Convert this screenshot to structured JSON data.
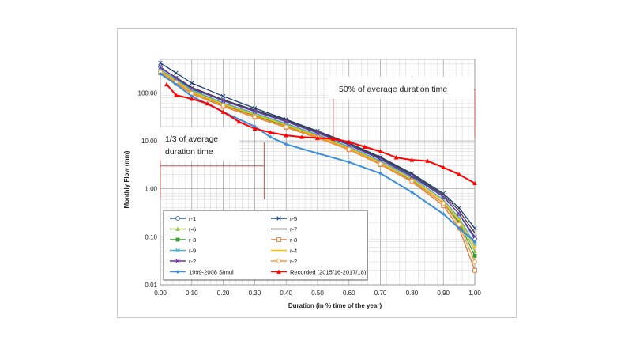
{
  "chart_data": {
    "type": "line",
    "title": "",
    "xlabel": "Duration (in % time of the year)",
    "ylabel": "Monthly Flow (mm)",
    "xlim": [
      0,
      1
    ],
    "ylim": [
      0.01,
      500
    ],
    "yscale": "log",
    "x_ticks": [
      "0.00",
      "0.10",
      "0.20",
      "0.30",
      "0.40",
      "0.50",
      "0.60",
      "0.70",
      "0.80",
      "0.90",
      "1.00"
    ],
    "y_ticks": [
      {
        "value": 100,
        "label": "100.00"
      },
      {
        "value": 10,
        "label": "10.00"
      },
      {
        "value": 1,
        "label": "1.00"
      },
      {
        "value": 0.1,
        "label": "0.10"
      },
      {
        "value": 0.01,
        "label": "0.01"
      }
    ],
    "grid": true,
    "annotations": [
      {
        "text": "50% of average duration time",
        "x_from": 0.55,
        "x_to": 1.0,
        "y": 100
      },
      {
        "text_lines": [
          "1/3 of average",
          "duration time"
        ],
        "x_from": 0.0,
        "x_to": 0.33,
        "y": 10
      }
    ],
    "series": [
      {
        "name": "r-1",
        "color": "#2e5f9e",
        "marker": "circle-open",
        "x": [
          0,
          0.05,
          0.1,
          0.2,
          0.3,
          0.4,
          0.5,
          0.6,
          0.7,
          0.8,
          0.9,
          0.95,
          1.0
        ],
        "y": [
          350,
          200,
          120,
          70,
          42,
          26,
          15,
          8.5,
          4.2,
          1.9,
          0.7,
          0.3,
          0.09
        ]
      },
      {
        "name": "r-5",
        "color": "#1f3f7a",
        "marker": "cross",
        "x": [
          0,
          0.05,
          0.1,
          0.2,
          0.3,
          0.4,
          0.5,
          0.6,
          0.7,
          0.8,
          0.9,
          0.95,
          1.0
        ],
        "y": [
          420,
          260,
          160,
          85,
          48,
          28,
          16,
          9,
          4.6,
          2.1,
          0.8,
          0.4,
          0.15
        ]
      },
      {
        "name": "r-6",
        "color": "#9bbb59",
        "marker": "triangle",
        "x": [
          0,
          0.05,
          0.1,
          0.2,
          0.3,
          0.4,
          0.5,
          0.6,
          0.7,
          0.8,
          0.9,
          0.95,
          1.0
        ],
        "y": [
          300,
          180,
          110,
          60,
          36,
          22,
          13,
          7.2,
          3.6,
          1.6,
          0.55,
          0.22,
          0.05
        ]
      },
      {
        "name": "r-7",
        "color": "#404040",
        "marker": "none",
        "x": [
          0,
          0.05,
          0.1,
          0.2,
          0.3,
          0.4,
          0.5,
          0.6,
          0.7,
          0.8,
          0.9,
          0.95,
          1.0
        ],
        "y": [
          330,
          210,
          130,
          72,
          44,
          27,
          15.5,
          8.8,
          4.4,
          2.0,
          0.75,
          0.35,
          0.12
        ]
      },
      {
        "name": "r-3",
        "color": "#33a02c",
        "marker": "square",
        "x": [
          0,
          0.05,
          0.1,
          0.2,
          0.3,
          0.4,
          0.5,
          0.6,
          0.7,
          0.8,
          0.9,
          0.95,
          1.0
        ],
        "y": [
          280,
          170,
          100,
          55,
          34,
          20,
          12,
          6.8,
          3.3,
          1.5,
          0.5,
          0.2,
          0.04
        ]
      },
      {
        "name": "r-8",
        "color": "#e07b39",
        "marker": "square-open",
        "x": [
          0,
          0.05,
          0.1,
          0.2,
          0.3,
          0.4,
          0.5,
          0.6,
          0.7,
          0.8,
          0.9,
          0.95,
          1.0
        ],
        "y": [
          260,
          160,
          95,
          52,
          31,
          19,
          11.5,
          6.5,
          3.2,
          1.4,
          0.45,
          0.15,
          0.02
        ]
      },
      {
        "name": "r-9",
        "color": "#4bacc6",
        "marker": "cross",
        "x": [
          0,
          0.05,
          0.1,
          0.2,
          0.3,
          0.4,
          0.5,
          0.6,
          0.7,
          0.8,
          0.9,
          0.95,
          1.0
        ],
        "y": [
          310,
          190,
          115,
          62,
          38,
          23,
          13.5,
          7.6,
          3.8,
          1.7,
          0.6,
          0.25,
          0.07
        ]
      },
      {
        "name": "r-4",
        "color": "#ffc000",
        "marker": "dash",
        "x": [
          0,
          0.05,
          0.1,
          0.2,
          0.3,
          0.4,
          0.5,
          0.6,
          0.7,
          0.8,
          0.9,
          0.95,
          1.0
        ],
        "y": [
          290,
          175,
          105,
          58,
          35,
          21,
          12.5,
          7.0,
          3.5,
          1.6,
          0.55,
          0.23,
          0.06
        ]
      },
      {
        "name": "r-2",
        "color": "#7030a0",
        "marker": "cross",
        "x": [
          0,
          0.05,
          0.1,
          0.2,
          0.3,
          0.4,
          0.5,
          0.6,
          0.7,
          0.8,
          0.9,
          0.95,
          1.0
        ],
        "y": [
          340,
          205,
          125,
          68,
          41,
          25,
          14.5,
          8.2,
          4.1,
          1.8,
          0.68,
          0.3,
          0.1
        ]
      },
      {
        "name": "r-2",
        "color": "#f79646",
        "marker": "circle-open",
        "x": [
          0,
          0.05,
          0.1,
          0.2,
          0.3,
          0.4,
          0.5,
          0.6,
          0.7,
          0.8,
          0.9,
          0.95,
          1.0
        ],
        "y": [
          270,
          165,
          98,
          54,
          32,
          19.5,
          11.8,
          6.6,
          3.3,
          1.45,
          0.5,
          0.18,
          0.03
        ]
      },
      {
        "name": "1999-2008 Simul",
        "color": "#3a8fd8",
        "marker": "diamond",
        "x": [
          0,
          0.05,
          0.1,
          0.2,
          0.3,
          0.35,
          0.4,
          0.5,
          0.6,
          0.7,
          0.8,
          0.9,
          0.95,
          1.0
        ],
        "y": [
          250,
          150,
          85,
          40,
          20,
          12,
          8.5,
          5.5,
          3.6,
          2.1,
          0.85,
          0.3,
          0.15,
          0.08
        ]
      },
      {
        "name": "Recorded (2015/16-2017/18)",
        "color": "#ff0000",
        "marker": "triangle",
        "x": [
          0.02,
          0.05,
          0.1,
          0.15,
          0.2,
          0.25,
          0.3,
          0.35,
          0.4,
          0.45,
          0.5,
          0.55,
          0.6,
          0.65,
          0.7,
          0.75,
          0.8,
          0.85,
          0.9,
          0.95,
          1.0
        ],
        "y": [
          150,
          90,
          75,
          60,
          40,
          25,
          18,
          15,
          13,
          12,
          11.5,
          11,
          9.5,
          7.5,
          6,
          4.5,
          4,
          3.8,
          2.8,
          2,
          1.3
        ]
      }
    ]
  }
}
